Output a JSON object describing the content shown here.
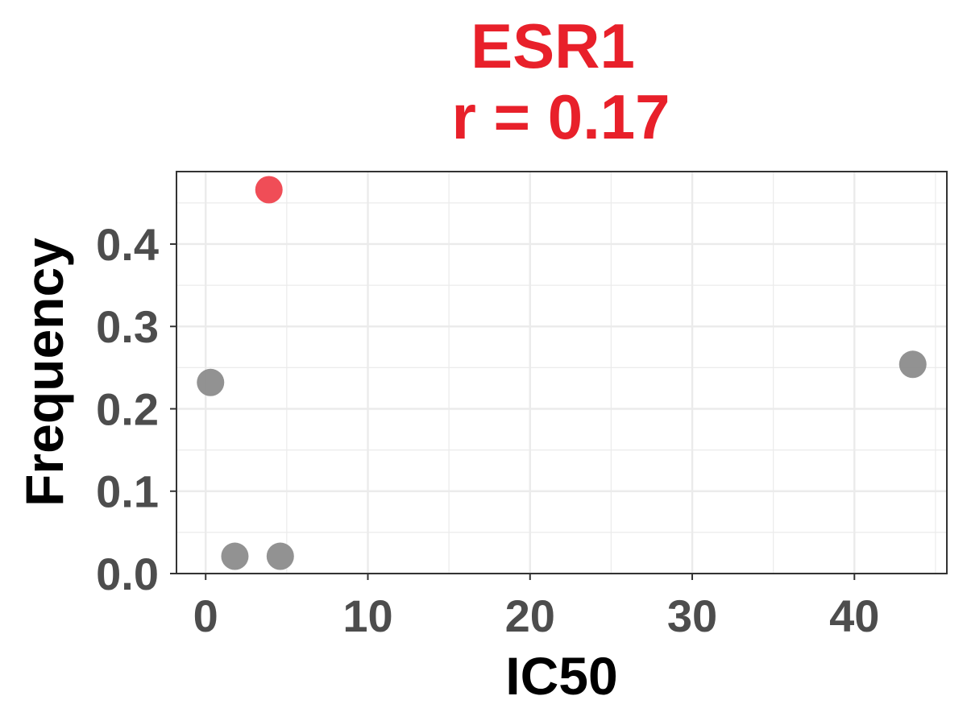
{
  "chart_data": {
    "type": "scatter",
    "title": "ESR1",
    "subtitle": "r = 0.17",
    "xlabel": "IC50",
    "ylabel": "Frequency",
    "xlim": [
      -1.8,
      45.7
    ],
    "ylim": [
      0.0,
      0.488
    ],
    "x_ticks": [
      0,
      10,
      20,
      30,
      40
    ],
    "y_ticks": [
      0.0,
      0.1,
      0.2,
      0.3,
      0.4
    ],
    "x_tick_labels": [
      "0",
      "10",
      "20",
      "30",
      "40"
    ],
    "y_tick_labels": [
      "0.0",
      "0.1",
      "0.2",
      "0.3",
      "0.4"
    ],
    "grid": true,
    "legend": "none",
    "points": [
      {
        "x": 0.3,
        "y": 0.232,
        "highlight": false
      },
      {
        "x": 1.8,
        "y": 0.021,
        "highlight": false
      },
      {
        "x": 4.6,
        "y": 0.021,
        "highlight": false
      },
      {
        "x": 3.9,
        "y": 0.466,
        "highlight": true
      },
      {
        "x": 43.6,
        "y": 0.254,
        "highlight": false
      }
    ],
    "colors": {
      "title": "#e8202a",
      "point_default": "#8c8c8c",
      "point_highlight": "#ee3a45",
      "grid": "#ebebeb",
      "axis": "#333333",
      "tick_text": "#4d4d4d"
    }
  }
}
